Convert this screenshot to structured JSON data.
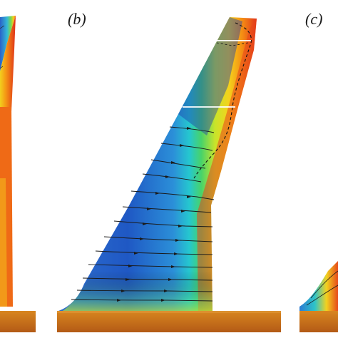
{
  "figure": {
    "panel_labels": {
      "b": "(b)",
      "c": "(c)"
    },
    "colormap": [
      "#1a3fb8",
      "#2c86d8",
      "#24c9d8",
      "#3fd36c",
      "#c7e62a",
      "#f6d21b",
      "#f68a12",
      "#e0331a"
    ],
    "base_plate_color": "#c6701d",
    "streamline_color": "#1a1a1a"
  }
}
